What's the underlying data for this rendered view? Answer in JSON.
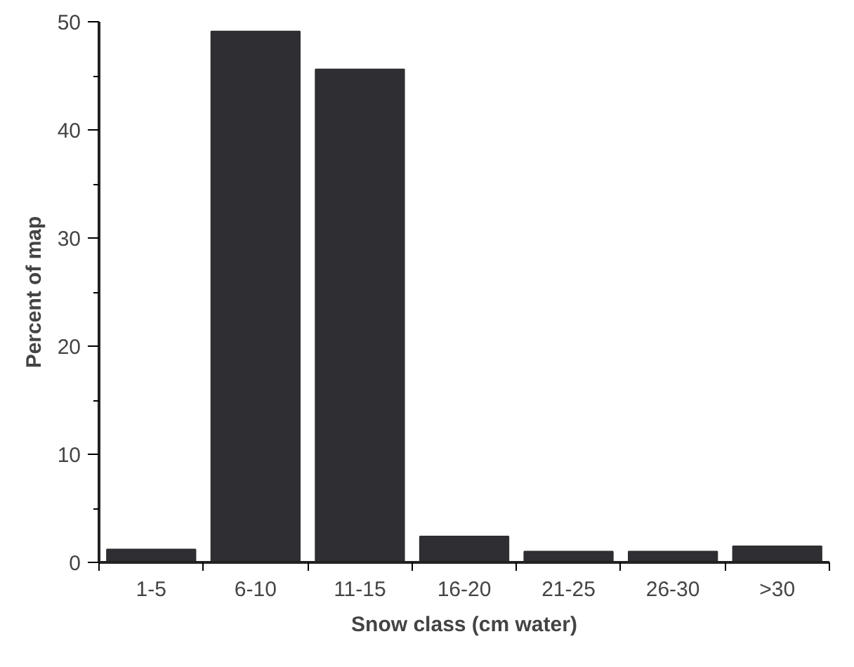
{
  "chart_data": {
    "type": "bar",
    "xlabel": "Snow class (cm water)",
    "ylabel": "Percent of map",
    "categories": [
      "1-5",
      "6-10",
      "11-15",
      "16-20",
      "21-25",
      "26-30",
      ">30"
    ],
    "values": [
      1.2,
      49.1,
      45.6,
      2.4,
      1.0,
      1.0,
      1.5
    ],
    "color": "#2f2f33",
    "ylim": [
      0,
      50
    ],
    "yticks": [
      0,
      10,
      20,
      30,
      40,
      50
    ],
    "grid": false
  }
}
